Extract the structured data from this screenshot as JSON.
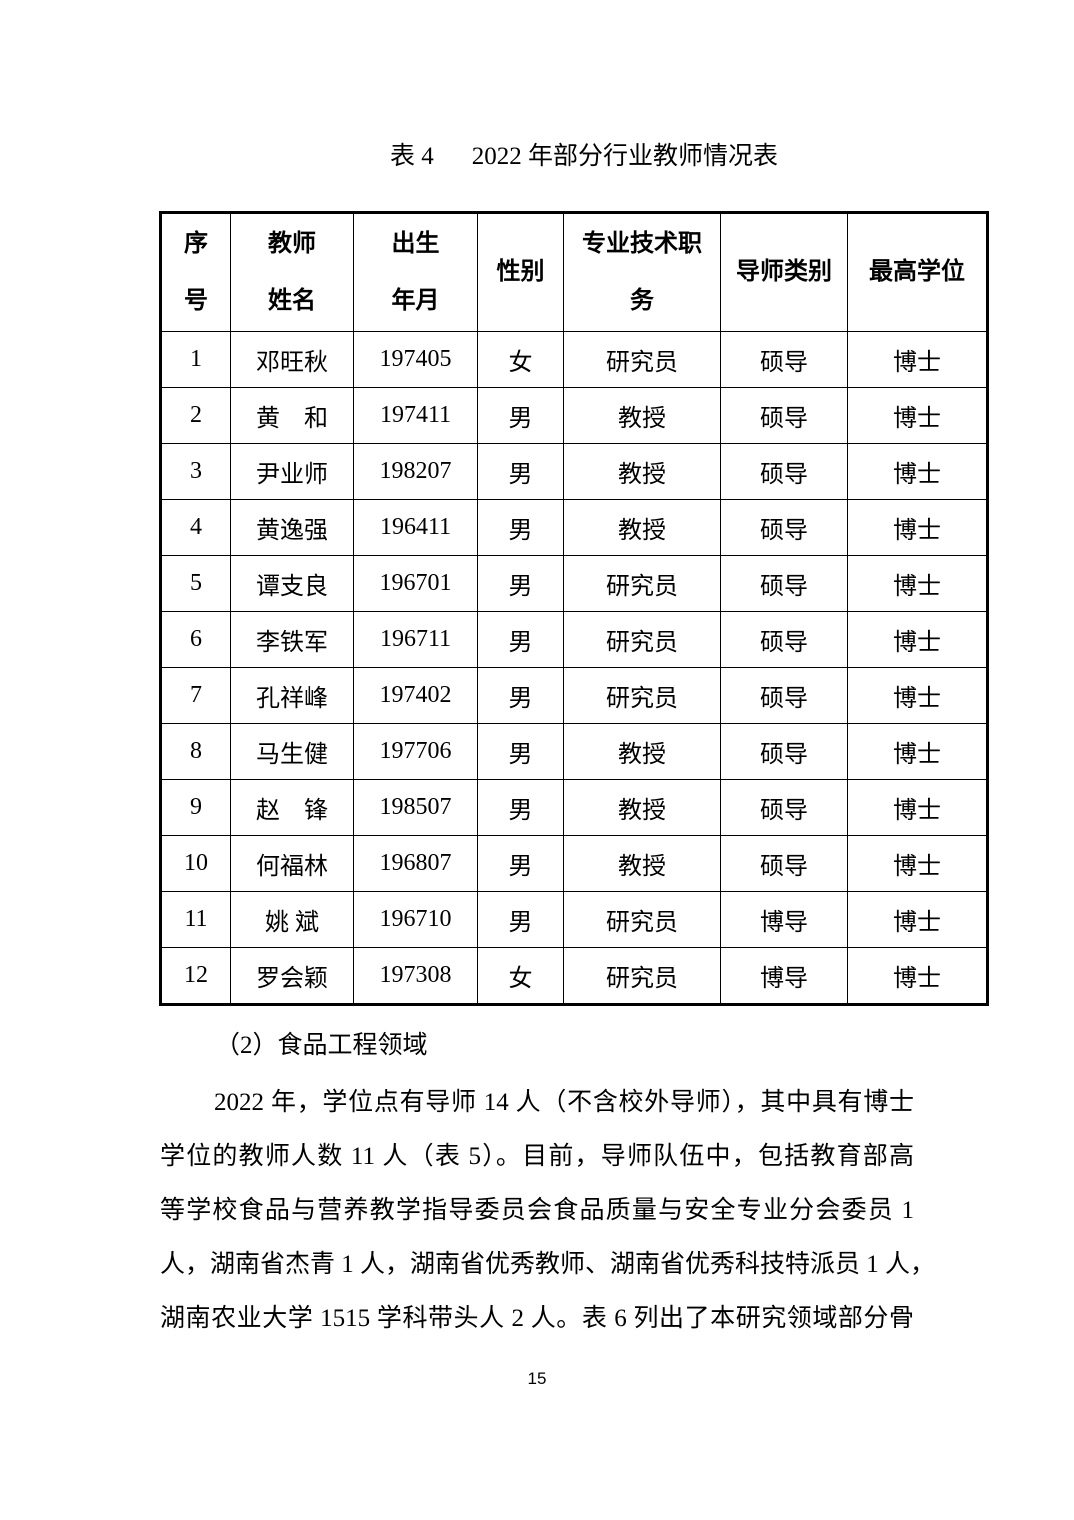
{
  "title": {
    "label": "表 4",
    "text": "2022 年部分行业教师情况表"
  },
  "table": {
    "headers": [
      {
        "label": "序号",
        "lines": [
          "序",
          "号"
        ]
      },
      {
        "label": "教师姓名",
        "lines": [
          "教师",
          "姓名"
        ]
      },
      {
        "label": "出生年月",
        "lines": [
          "出生",
          "年月"
        ]
      },
      {
        "label": "性别",
        "lines": [
          "性别"
        ]
      },
      {
        "label": "专业技术职务",
        "lines": [
          "专业技术职",
          "务"
        ]
      },
      {
        "label": "导师类别",
        "lines": [
          "导师类别"
        ]
      },
      {
        "label": "最高学位",
        "lines": [
          "最高学位"
        ]
      }
    ],
    "rows": [
      [
        "1",
        "邓旺秋",
        "197405",
        "女",
        "研究员",
        "硕导",
        "博士"
      ],
      [
        "2",
        "黄　和",
        "197411",
        "男",
        "教授",
        "硕导",
        "博士"
      ],
      [
        "3",
        "尹业师",
        "198207",
        "男",
        "教授",
        "硕导",
        "博士"
      ],
      [
        "4",
        "黄逸强",
        "196411",
        "男",
        "教授",
        "硕导",
        "博士"
      ],
      [
        "5",
        "谭支良",
        "196701",
        "男",
        "研究员",
        "硕导",
        "博士"
      ],
      [
        "6",
        "李铁军",
        "196711",
        "男",
        "研究员",
        "硕导",
        "博士"
      ],
      [
        "7",
        "孔祥峰",
        "197402",
        "男",
        "研究员",
        "硕导",
        "博士"
      ],
      [
        "8",
        "马生健",
        "197706",
        "男",
        "教授",
        "硕导",
        "博士"
      ],
      [
        "9",
        "赵　锋",
        "198507",
        "男",
        "教授",
        "硕导",
        "博士"
      ],
      [
        "10",
        "何福林",
        "196807",
        "男",
        "教授",
        "硕导",
        "博士"
      ],
      [
        "11",
        "姚 斌",
        "196710",
        "男",
        "研究员",
        "博导",
        "博士"
      ],
      [
        "12",
        "罗会颖",
        "197308",
        "女",
        "研究员",
        "博导",
        "博士"
      ]
    ]
  },
  "body": {
    "subheading": "（2）食品工程领域",
    "paragraph_lines": [
      "2022 年，学位点有导师 14 人（不含校外导师），其中具有博士",
      "学位的教师人数 11 人（表 5）。目前，导师队伍中，包括教育部高",
      "等学校食品与营养教学指导委员会食品质量与安全专业分会委员 1",
      "人，湖南省杰青 1 人，湖南省优秀教师、湖南省优秀科技特派员 1 人，",
      "湖南农业大学 1515 学科带头人 2 人。表 6 列出了本研究领域部分骨"
    ]
  },
  "footer": {
    "page_number": "15"
  }
}
